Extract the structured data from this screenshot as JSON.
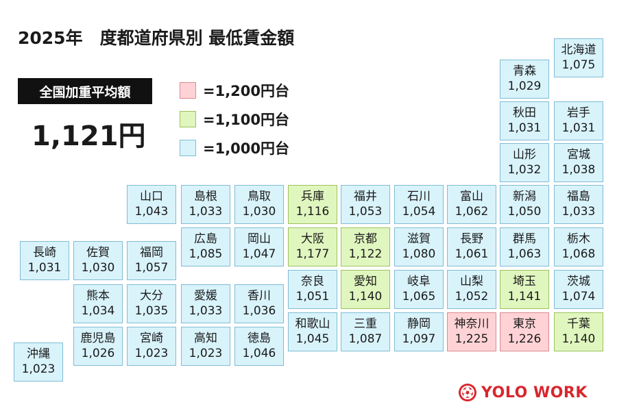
{
  "title": "2025年　度都道府県別 最低賃金額",
  "national": {
    "label": "全国加重平均額",
    "value": "1,121円"
  },
  "legend": [
    {
      "color": "#ffd3d6",
      "label": "=1,200円台"
    },
    {
      "color": "#e0f6bf",
      "label": "=1,100円台"
    },
    {
      "color": "#d9f3fb",
      "label": "=1,000円台"
    }
  ],
  "tier_colors": {
    "1000": "#d9f3fb",
    "1100": "#e0f6bf",
    "1200": "#ffd3d6"
  },
  "prefectures": [
    {
      "name": "北海道",
      "value": "1,075",
      "tier": "1000"
    },
    {
      "name": "青森",
      "value": "1,029",
      "tier": "1000"
    },
    {
      "name": "秋田",
      "value": "1,031",
      "tier": "1000"
    },
    {
      "name": "岩手",
      "value": "1,031",
      "tier": "1000"
    },
    {
      "name": "山形",
      "value": "1,032",
      "tier": "1000"
    },
    {
      "name": "宮城",
      "value": "1,038",
      "tier": "1000"
    },
    {
      "name": "山口",
      "value": "1,043",
      "tier": "1000"
    },
    {
      "name": "島根",
      "value": "1,033",
      "tier": "1000"
    },
    {
      "name": "鳥取",
      "value": "1,030",
      "tier": "1000"
    },
    {
      "name": "兵庫",
      "value": "1,116",
      "tier": "1100"
    },
    {
      "name": "福井",
      "value": "1,053",
      "tier": "1000"
    },
    {
      "name": "石川",
      "value": "1,054",
      "tier": "1000"
    },
    {
      "name": "富山",
      "value": "1,062",
      "tier": "1000"
    },
    {
      "name": "新潟",
      "value": "1,050",
      "tier": "1000"
    },
    {
      "name": "福島",
      "value": "1,033",
      "tier": "1000"
    },
    {
      "name": "広島",
      "value": "1,085",
      "tier": "1000"
    },
    {
      "name": "岡山",
      "value": "1,047",
      "tier": "1000"
    },
    {
      "name": "大阪",
      "value": "1,177",
      "tier": "1100"
    },
    {
      "name": "京都",
      "value": "1,122",
      "tier": "1100"
    },
    {
      "name": "滋賀",
      "value": "1,080",
      "tier": "1000"
    },
    {
      "name": "長野",
      "value": "1,061",
      "tier": "1000"
    },
    {
      "name": "群馬",
      "value": "1,063",
      "tier": "1000"
    },
    {
      "name": "栃木",
      "value": "1,068",
      "tier": "1000"
    },
    {
      "name": "長崎",
      "value": "1,031",
      "tier": "1000"
    },
    {
      "name": "佐賀",
      "value": "1,030",
      "tier": "1000"
    },
    {
      "name": "福岡",
      "value": "1,057",
      "tier": "1000"
    },
    {
      "name": "奈良",
      "value": "1,051",
      "tier": "1000"
    },
    {
      "name": "愛知",
      "value": "1,140",
      "tier": "1100"
    },
    {
      "name": "岐阜",
      "value": "1,065",
      "tier": "1000"
    },
    {
      "name": "山梨",
      "value": "1,052",
      "tier": "1000"
    },
    {
      "name": "埼玉",
      "value": "1,141",
      "tier": "1100"
    },
    {
      "name": "茨城",
      "value": "1,074",
      "tier": "1000"
    },
    {
      "name": "熊本",
      "value": "1,034",
      "tier": "1000"
    },
    {
      "name": "大分",
      "value": "1,035",
      "tier": "1000"
    },
    {
      "name": "愛媛",
      "value": "1,033",
      "tier": "1000"
    },
    {
      "name": "香川",
      "value": "1,036",
      "tier": "1000"
    },
    {
      "name": "和歌山",
      "value": "1,045",
      "tier": "1000"
    },
    {
      "name": "三重",
      "value": "1,087",
      "tier": "1000"
    },
    {
      "name": "静岡",
      "value": "1,097",
      "tier": "1000"
    },
    {
      "name": "神奈川",
      "value": "1,225",
      "tier": "1200"
    },
    {
      "name": "東京",
      "value": "1,226",
      "tier": "1200"
    },
    {
      "name": "千葉",
      "value": "1,140",
      "tier": "1100"
    },
    {
      "name": "沖縄",
      "value": "1,023",
      "tier": "1000"
    },
    {
      "name": "鹿児島",
      "value": "1,026",
      "tier": "1000"
    },
    {
      "name": "宮崎",
      "value": "1,023",
      "tier": "1000"
    },
    {
      "name": "高知",
      "value": "1,023",
      "tier": "1000"
    },
    {
      "name": "徳島",
      "value": "1,046",
      "tier": "1000"
    }
  ],
  "brand": {
    "name": "YOLO WORK",
    "color": "#d9262e",
    "icon": "flower-crest-icon"
  }
}
